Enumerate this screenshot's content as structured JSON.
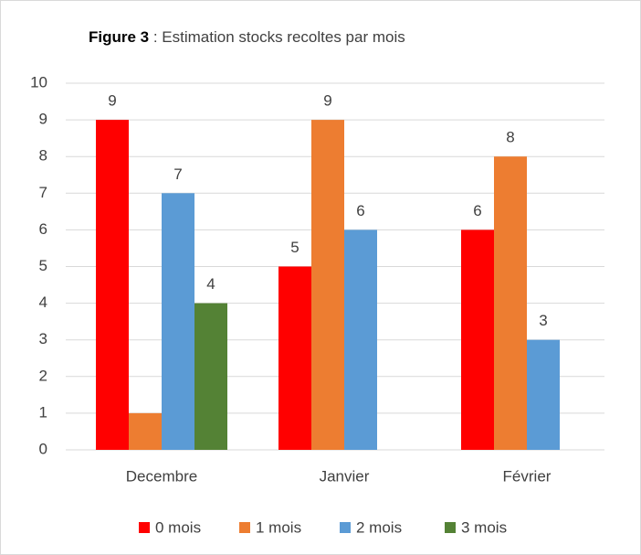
{
  "chart_data": {
    "type": "bar",
    "figure_label": "Figure 3",
    "title": ": Estimation stocks recoltes par mois",
    "categories": [
      "Decembre",
      "Janvier",
      "Février"
    ],
    "series": [
      {
        "name": "0 mois",
        "color": "#ff0000",
        "values": [
          9,
          5,
          6
        ]
      },
      {
        "name": "1 mois",
        "color": "#ed7d31",
        "values": [
          1,
          9,
          8
        ],
        "labels_shown": [
          false,
          true,
          true
        ]
      },
      {
        "name": "2 mois",
        "color": "#5b9bd5",
        "values": [
          7,
          6,
          3
        ]
      },
      {
        "name": "3 mois",
        "color": "#548235",
        "values": [
          4,
          null,
          null
        ]
      }
    ],
    "ylim": [
      0,
      10
    ],
    "yticks": [
      0,
      1,
      2,
      3,
      4,
      5,
      6,
      7,
      8,
      9,
      10
    ],
    "grid": true,
    "legend": "bottom"
  }
}
